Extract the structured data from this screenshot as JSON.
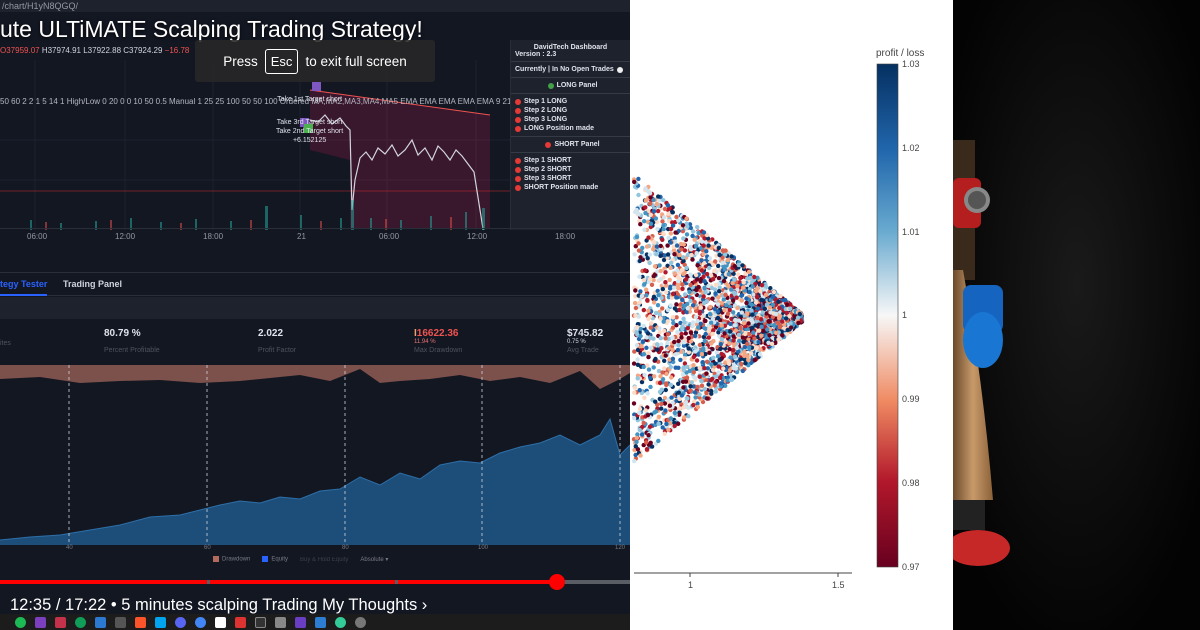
{
  "video": {
    "url_fragment": "/chart/H1yN8QGQ/",
    "title": "ute ULTiMATE Scalping Trading Strategy!",
    "esc_toast": {
      "press": "Press",
      "key": "Esc",
      "rest": "to exit full screen"
    },
    "ohlc": {
      "o": "O37959.07",
      "h": "H37974.91",
      "l": "L37922.88",
      "c": "C37924.29",
      "chg": "−16.78"
    },
    "indicators": "50 60 2 2 1 5 14 1 High/Low 0 20 0 0 10 50 0.5 Manual 1 25 25 100 50 50 100 Ordered MA,MA2,MA3,MA4,MA5 EMA EMA EMA EMA EMA 9 21 55 100 200 100",
    "annotations": [
      "Take 1st Target short",
      "Take 3rd Target short",
      "Take 2nd Target short",
      "+6.152125"
    ],
    "time_ticks": [
      "06:00",
      "12:00",
      "18:00",
      "21",
      "06:00",
      "12:00",
      "18:00"
    ],
    "dashboard": {
      "title": "DavidTech Dashboard",
      "version": "Version  : 2.3",
      "currently": "Currently   | In No Open Trades",
      "long_panel": "LONG Panel",
      "long_steps": [
        "Step 1 LONG",
        "Step 2 LONG",
        "Step 3 LONG",
        "LONG Position made"
      ],
      "short_panel": "SHORT Panel",
      "short_steps": [
        "Step 1 SHORT",
        "Step 2 SHORT",
        "Step 3 SHORT",
        "SHORT Position made"
      ]
    },
    "tabs": {
      "strategy": "tegy Tester",
      "trading": "Trading Panel"
    },
    "stats": [
      {
        "value": "",
        "sub": "",
        "label": "ites"
      },
      {
        "value": "80.79 %",
        "sub": "",
        "label": "Percent Profitable"
      },
      {
        "value": "2.022",
        "sub": "",
        "label": "Profit Factor"
      },
      {
        "value": "16622.36",
        "sub": "11.94 %",
        "label": "Max Drawdown"
      },
      {
        "value": "$745.82",
        "sub": "0.75 %",
        "label": "Avg Trade"
      }
    ],
    "equity_legend": [
      "Drawdown",
      "Equity",
      "Buy & Hold Equity",
      "Absolute"
    ],
    "equity_x_ticks": [
      "40",
      "60",
      "80",
      "100",
      "120"
    ],
    "progress": 0.892,
    "time_display": "12:35 / 17:22 • 5 minutes scalping Trading My Thoughts ›",
    "colors": {
      "bg": "#131722",
      "equity": "#1e4f7a",
      "drawdown": "#b36a5e",
      "progress": "#ff0000"
    }
  },
  "plot": {
    "colorbar_title": "profit / loss",
    "colorbar_ticks": [
      "1.03",
      "1.02",
      "1.01",
      "1",
      "0.99",
      "0.98",
      "0.97"
    ],
    "x_ticks": [
      "1",
      "1.5"
    ],
    "colorscale": "RdBu"
  },
  "chart_data": {
    "type": "scatter",
    "title": "",
    "xlabel": "",
    "ylabel": "",
    "colorbar_label": "profit / loss",
    "colorbar_range": [
      0.97,
      1.03
    ],
    "xlim_visible": [
      0.8,
      1.55
    ],
    "x_ticks": [
      1,
      1.5
    ],
    "description_note": "Dense triangular cloud of points colored by profit / loss ratio; apex at x≈1.35."
  },
  "photo": {
    "subject": "wooden-toy-robot"
  }
}
